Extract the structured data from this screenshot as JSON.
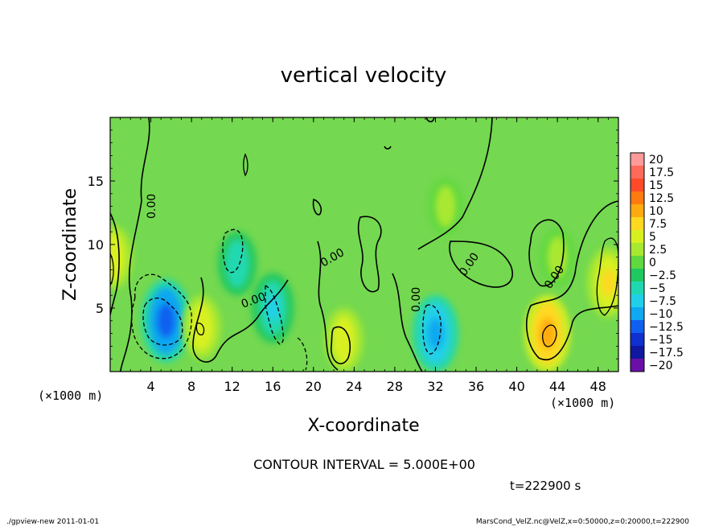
{
  "chart_data": {
    "type": "heatmap",
    "title": "vertical velocity",
    "xlabel": "X-coordinate",
    "ylabel": "Z-coordinate",
    "x_unit_left": "(×1000 m)",
    "x_unit_right": "(×1000 m)",
    "x_ticks": [
      4,
      8,
      12,
      16,
      20,
      24,
      28,
      32,
      36,
      40,
      44,
      48
    ],
    "y_ticks": [
      5,
      10,
      15
    ],
    "xlim": [
      0,
      50
    ],
    "ylim": [
      0,
      20
    ],
    "contour_labels": [
      "0.00",
      "0.00",
      "0.00",
      "0.00",
      "0.00",
      "0.00"
    ],
    "contour_interval_text": "CONTOUR INTERVAL = 5.000E+00",
    "time_text": "t=222900 s",
    "colorbar": {
      "labels": [
        "20",
        "17.5",
        "15",
        "12.5",
        "10",
        "7.5",
        "5",
        "2.5",
        "0",
        "−2.5",
        "−5",
        "−7.5",
        "−10",
        "−12.5",
        "−15",
        "−17.5",
        "−20"
      ],
      "colors": [
        "#ff9a9a",
        "#ff6a5a",
        "#ff4a2a",
        "#ff7a10",
        "#ffaa10",
        "#ffd820",
        "#d8f020",
        "#a8e830",
        "#60d840",
        "#20c860",
        "#20d8b0",
        "#20d0e8",
        "#10a8f0",
        "#1060f0",
        "#1030d0",
        "#1018a0",
        "#6a10a8"
      ]
    },
    "background_color": "#74d850",
    "features": [
      {
        "x": 5.5,
        "z": 4.0,
        "w": -12.5
      },
      {
        "x": 16.0,
        "z": 5.0,
        "w": -7.5
      },
      {
        "x": 32.0,
        "z": 3.0,
        "w": -10.0
      },
      {
        "x": 12.5,
        "z": 8.5,
        "w": -5.0
      },
      {
        "x": 43.0,
        "z": 3.0,
        "w": 10.0
      },
      {
        "x": 49.0,
        "z": 7.0,
        "w": 7.5
      },
      {
        "x": 0.3,
        "z": 9.0,
        "w": 5.0
      },
      {
        "x": 23.0,
        "z": 2.5,
        "w": 5.0
      },
      {
        "x": 9.0,
        "z": 3.5,
        "w": 5.0
      },
      {
        "x": 44.0,
        "z": 9.0,
        "w": 2.5
      },
      {
        "x": 33.0,
        "z": 13.0,
        "w": 2.5
      }
    ]
  },
  "footer": {
    "left": "./gpview-new   2011-01-01",
    "right": "MarsCond_VelZ.nc@VelZ,x=0:50000,z=0:20000,t=222900"
  }
}
